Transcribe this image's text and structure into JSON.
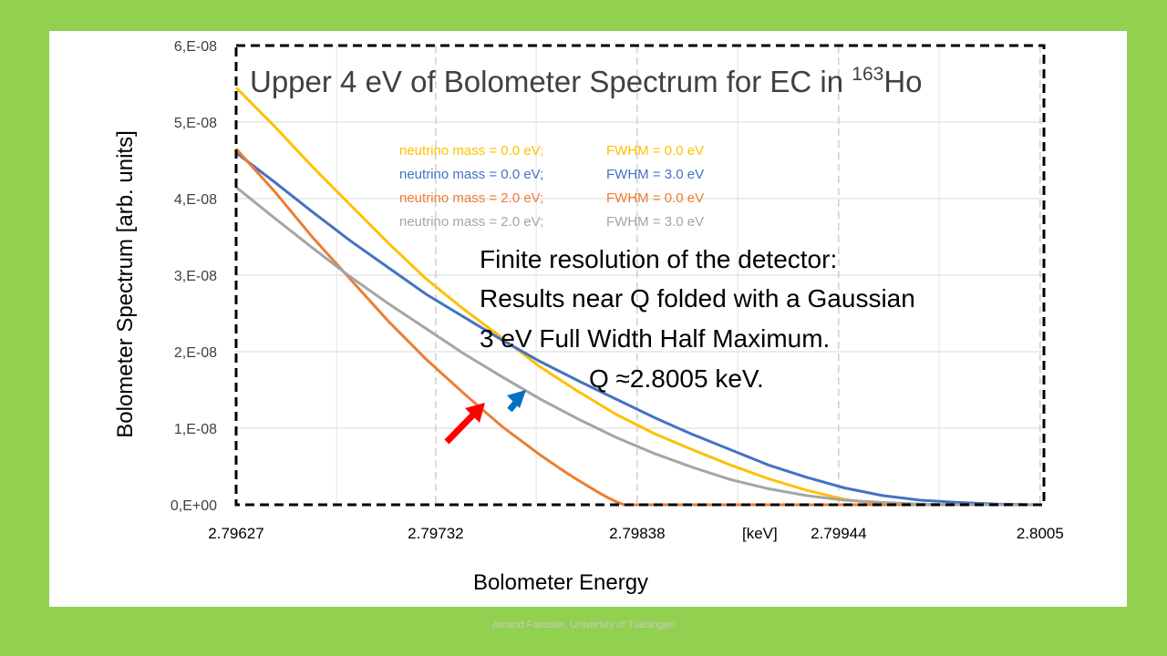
{
  "footer": "Amand Faessler, University of Tuebingen",
  "colors": {
    "background": "#92d050",
    "series_yellow": "#ffc000",
    "series_blue": "#4472c4",
    "series_orange": "#ed7d31",
    "series_gray": "#a5a5a5",
    "arrow_red": "#ff0000",
    "arrow_blue": "#0070c0"
  },
  "annotation": {
    "line1": "Finite resolution of the detector:",
    "line2": "Results near Q folded with a Gaussian",
    "line3": "3 eV Full Width Half Maximum.",
    "line4": "Q ≈2.8005 keV."
  },
  "chart_data": {
    "type": "line",
    "title": "Upper 4 eV of Bolometer Spectrum for EC in ",
    "title_superscript": "163",
    "title_suffix": "Ho",
    "xlabel": "Bolometer Energy",
    "ylabel": "Bolometer Spectrum [arb. units]",
    "x_unit_label": "[keV]",
    "xlim": [
      2.79627,
      2.80052
    ],
    "ylim": [
      0,
      6e-08
    ],
    "x_tick_values": [
      2.79627,
      2.79732,
      2.79838,
      2.79944,
      2.8005
    ],
    "x_tick_labels": [
      "2.79627",
      "2.79732",
      "2.79838",
      "2.79944",
      "2.8005"
    ],
    "y_tick_values": [
      0,
      1e-08,
      2e-08,
      3e-08,
      4e-08,
      5e-08,
      6e-08
    ],
    "y_tick_labels": [
      "0,E+00",
      "1,E-08",
      "2,E-08",
      "3,E-08",
      "4,E-08",
      "5,E-08",
      "6,E-08"
    ],
    "grid": true,
    "legend_position": "top-center",
    "series": [
      {
        "name": "neutrino mass = 0.0 eV;     FWHM = 0.0 eV",
        "color": "#ffc000",
        "x": [
          2.79627,
          2.79647,
          2.79667,
          2.79687,
          2.79707,
          2.79727,
          2.79747,
          2.79767,
          2.79787,
          2.79807,
          2.79827,
          2.79847,
          2.79867,
          2.79887,
          2.79907,
          2.79927,
          2.79947,
          2.79967,
          2.79987,
          2.80007,
          2.80027,
          2.8005
        ],
        "y": [
          5.45e-08,
          4.95e-08,
          4.42e-08,
          3.92e-08,
          3.42e-08,
          2.95e-08,
          2.55e-08,
          2.18e-08,
          1.8e-08,
          1.48e-08,
          1.18e-08,
          9.3e-09,
          7.2e-09,
          5.2e-09,
          3.4e-09,
          1.9e-09,
          7e-10,
          1e-10,
          0,
          0,
          0,
          0
        ]
      },
      {
        "name": "neutrino mass = 0.0 eV;     FWHM = 3.0 eV",
        "color": "#4472c4",
        "x": [
          2.79627,
          2.79647,
          2.79667,
          2.79687,
          2.79707,
          2.79727,
          2.79747,
          2.79767,
          2.79787,
          2.79807,
          2.79827,
          2.79847,
          2.79867,
          2.79887,
          2.79907,
          2.79927,
          2.79947,
          2.79967,
          2.79987,
          2.80007,
          2.80027,
          2.8005
        ],
        "y": [
          4.6e-08,
          4.22e-08,
          3.83e-08,
          3.45e-08,
          3.1e-08,
          2.75e-08,
          2.45e-08,
          2.15e-08,
          1.87e-08,
          1.62e-08,
          1.38e-08,
          1.14e-08,
          9.2e-09,
          7.2e-09,
          5.2e-09,
          3.6e-09,
          2.2e-09,
          1.2e-09,
          6e-10,
          3e-10,
          1e-10,
          0
        ]
      },
      {
        "name": "neutrino mass = 2.0 eV;     FWHM = 0.0 eV",
        "color": "#ed7d31",
        "x": [
          2.79627,
          2.79647,
          2.79667,
          2.79687,
          2.79707,
          2.79727,
          2.79747,
          2.79767,
          2.79787,
          2.79797,
          2.79807,
          2.79817,
          2.79822,
          2.79827,
          2.79831,
          2.8005
        ],
        "y": [
          4.65e-08,
          4.1e-08,
          3.5e-08,
          2.95e-08,
          2.4e-08,
          1.9e-08,
          1.45e-08,
          1.02e-08,
          6.5e-09,
          4.8e-09,
          3.2e-09,
          1.7e-09,
          1e-09,
          4e-10,
          0,
          0
        ]
      },
      {
        "name": "neutrino mass = 2.0 eV;     FWHM = 3.0 eV",
        "color": "#a5a5a5",
        "x": [
          2.79627,
          2.79647,
          2.79667,
          2.79687,
          2.79707,
          2.79727,
          2.79747,
          2.79767,
          2.79787,
          2.79807,
          2.79827,
          2.79847,
          2.79867,
          2.79887,
          2.79907,
          2.79927,
          2.79947,
          2.79967,
          2.79987,
          2.80007,
          2.80027,
          2.8005
        ],
        "y": [
          4.15e-08,
          3.75e-08,
          3.36e-08,
          2.98e-08,
          2.63e-08,
          2.3e-08,
          1.97e-08,
          1.67e-08,
          1.38e-08,
          1.12e-08,
          8.8e-09,
          6.7e-09,
          4.9e-09,
          3.3e-09,
          2.1e-09,
          1.2e-09,
          6e-10,
          3e-10,
          1e-10,
          0,
          0,
          0
        ]
      }
    ]
  }
}
